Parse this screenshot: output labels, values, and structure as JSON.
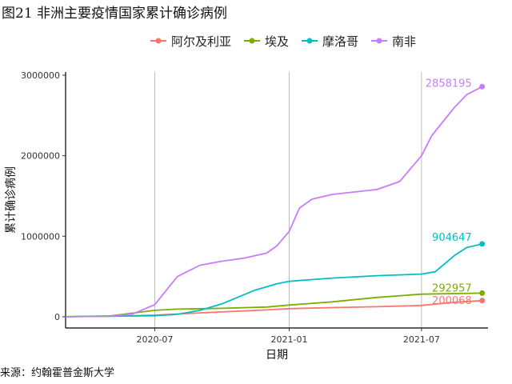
{
  "title": "图21 非洲主要疫情国家累计确诊病例",
  "source": "来源：约翰霍普金斯大学",
  "chart_data": {
    "type": "line",
    "xlabel": "日期",
    "ylabel": "累计确诊病例",
    "x_range": [
      "2020-03-01",
      "2021-09-30"
    ],
    "ylim": [
      -140000,
      3040000
    ],
    "x_ticks": [
      "2020-07-01",
      "2021-01-01",
      "2021-07-01"
    ],
    "x_tick_labels": [
      "2020-07",
      "2021-01",
      "2021-07"
    ],
    "y_ticks": [
      0,
      1000000,
      2000000,
      3000000
    ],
    "y_tick_labels": [
      "0",
      "1000000",
      "2000000",
      "3000000"
    ],
    "grid": "vertical major lines only",
    "legend_position": "top",
    "series": [
      {
        "name": "阿尔及利亚",
        "color": "#F8766D",
        "x": [
          "2020-03-01",
          "2020-06-01",
          "2020-07-01",
          "2020-09-01",
          "2020-12-01",
          "2021-01-01",
          "2021-03-01",
          "2021-05-01",
          "2021-07-01",
          "2021-08-15",
          "2021-09-22"
        ],
        "values": [
          0,
          12000,
          20000,
          48000,
          85000,
          100000,
          113000,
          124000,
          140000,
          180000,
          200068
        ],
        "end_label": "200068"
      },
      {
        "name": "埃及",
        "color": "#7CAE00",
        "x": [
          "2020-03-01",
          "2020-05-01",
          "2020-06-01",
          "2020-07-01",
          "2020-08-01",
          "2020-10-01",
          "2020-12-01",
          "2021-01-01",
          "2021-03-01",
          "2021-05-01",
          "2021-07-01",
          "2021-09-22"
        ],
        "values": [
          0,
          10000,
          45000,
          80000,
          95000,
          104000,
          120000,
          145000,
          185000,
          240000,
          280000,
          292957
        ],
        "end_label": "292957"
      },
      {
        "name": "摩洛哥",
        "color": "#00BFC4",
        "x": [
          "2020-03-01",
          "2020-06-01",
          "2020-07-01",
          "2020-08-01",
          "2020-09-01",
          "2020-10-01",
          "2020-11-15",
          "2020-12-15",
          "2021-01-01",
          "2021-03-01",
          "2021-05-01",
          "2021-07-01",
          "2021-07-20",
          "2021-08-15",
          "2021-09-01",
          "2021-09-22"
        ],
        "values": [
          0,
          9000,
          12000,
          30000,
          80000,
          160000,
          330000,
          410000,
          440000,
          480000,
          510000,
          530000,
          560000,
          760000,
          860000,
          904647
        ],
        "end_label": "904647"
      },
      {
        "name": "南非",
        "color": "#C77CFF",
        "x": [
          "2020-03-01",
          "2020-05-01",
          "2020-06-01",
          "2020-07-01",
          "2020-08-01",
          "2020-09-01",
          "2020-10-01",
          "2020-11-01",
          "2020-12-01",
          "2020-12-15",
          "2021-01-01",
          "2021-01-15",
          "2021-02-01",
          "2021-03-01",
          "2021-05-01",
          "2021-06-01",
          "2021-07-01",
          "2021-07-15",
          "2021-08-15",
          "2021-09-01",
          "2021-09-22"
        ],
        "values": [
          0,
          5000,
          35000,
          150000,
          500000,
          640000,
          690000,
          730000,
          790000,
          880000,
          1060000,
          1350000,
          1460000,
          1520000,
          1580000,
          1680000,
          2000000,
          2250000,
          2600000,
          2760000,
          2858195
        ],
        "end_label": "2858195"
      }
    ]
  }
}
